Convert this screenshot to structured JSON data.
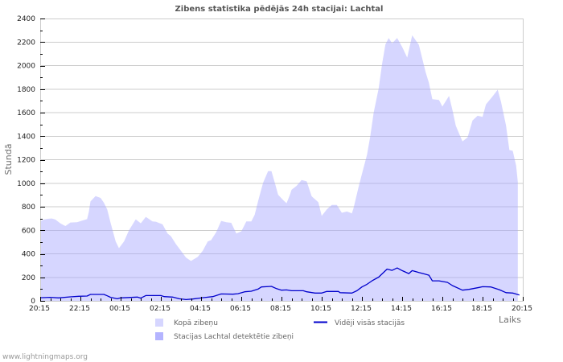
{
  "chart": {
    "watermark": "www.lightningmaps.org",
    "colors": {
      "grid": "#cccccc",
      "title": "#555555",
      "axis_label": "#707070",
      "total_fill": "#d6d6ff",
      "station_fill": "#b4b4ff",
      "average_line": "#0000cc"
    }
  },
  "chart_data": {
    "type": "area",
    "title": "Zibens statistika pēdējās 24h stacijai: Lachtal",
    "xlabel": "Laiks",
    "ylabel": "Stundā",
    "ylim": [
      0,
      2400
    ],
    "y_ticks": [
      0,
      200,
      400,
      600,
      800,
      1000,
      1200,
      1400,
      1600,
      1800,
      2000,
      2200,
      2400
    ],
    "x_ticks": [
      "20:15",
      "22:15",
      "00:15",
      "02:15",
      "04:15",
      "06:15",
      "08:15",
      "10:15",
      "12:15",
      "14:15",
      "16:15",
      "18:15",
      "20:15"
    ],
    "grid": true,
    "legend_position": "bottom",
    "series": [
      {
        "name": "Kopā zibeņu",
        "type": "area",
        "color": "#d6d6ff",
        "x": [
          "20:15",
          "20:25",
          "20:40",
          "20:50",
          "21:00",
          "21:15",
          "21:30",
          "21:45",
          "22:05",
          "22:20",
          "22:35",
          "22:40",
          "22:45",
          "23:00",
          "23:15",
          "23:25",
          "23:35",
          "23:45",
          "00:00",
          "00:10",
          "00:25",
          "00:40",
          "01:00",
          "01:15",
          "01:30",
          "01:50",
          "02:00",
          "02:20",
          "02:35",
          "02:45",
          "03:00",
          "03:15",
          "03:30",
          "03:45",
          "04:05",
          "04:20",
          "04:35",
          "04:45",
          "05:00",
          "05:15",
          "05:30",
          "05:45",
          "06:00",
          "06:15",
          "06:30",
          "06:45",
          "06:55",
          "07:05",
          "07:20",
          "07:35",
          "07:45",
          "07:55",
          "08:05",
          "08:20",
          "08:30",
          "08:40",
          "08:45",
          "09:00",
          "09:15",
          "09:30",
          "09:45",
          "10:05",
          "10:15",
          "10:30",
          "10:45",
          "11:00",
          "11:15",
          "11:30",
          "11:45",
          "11:50",
          "12:05",
          "12:15",
          "12:30",
          "12:40",
          "12:50",
          "13:05",
          "13:15",
          "13:25",
          "13:35",
          "13:45",
          "14:00",
          "14:15",
          "14:30",
          "14:45",
          "15:05",
          "15:15",
          "15:25",
          "15:35",
          "15:45",
          "16:05",
          "16:15",
          "16:35",
          "16:45",
          "16:55",
          "17:05",
          "17:15",
          "17:30",
          "17:45",
          "18:00",
          "18:15",
          "18:25",
          "18:45",
          "19:00",
          "19:10",
          "19:25",
          "19:35",
          "19:45",
          "19:55",
          "20:00"
        ],
        "values": [
          675,
          691,
          698,
          700,
          691,
          659,
          636,
          666,
          668,
          682,
          695,
          755,
          845,
          891,
          875,
          834,
          777,
          663,
          505,
          448,
          505,
          600,
          693,
          659,
          714,
          675,
          673,
          650,
          573,
          550,
          482,
          425,
          368,
          339,
          373,
          425,
          505,
          516,
          584,
          680,
          668,
          663,
          573,
          591,
          675,
          675,
          732,
          845,
          1004,
          1102,
          1102,
          1004,
          902,
          857,
          830,
          900,
          944,
          978,
          1027,
          1016,
          889,
          838,
          722,
          777,
          816,
          816,
          749,
          760,
          744,
          789,
          967,
          1078,
          1241,
          1400,
          1600,
          1805,
          2011,
          2180,
          2234,
          2189,
          2234,
          2159,
          2068,
          2257,
          2176,
          2060,
          1944,
          1853,
          1714,
          1708,
          1651,
          1742,
          1623,
          1489,
          1422,
          1355,
          1389,
          1533,
          1573,
          1564,
          1670,
          1738,
          1795,
          1693,
          1489,
          1282,
          1275,
          1150,
          1011
        ]
      },
      {
        "name": "Stacijas Lachtal detektētie zibeņi",
        "type": "area",
        "color": "#b4b4ff",
        "x": [],
        "values": []
      },
      {
        "name": "Vidēji visās stacijās",
        "type": "line",
        "color": "#0000cc",
        "x": [
          "20:15",
          "20:45",
          "21:10",
          "21:45",
          "22:10",
          "22:35",
          "22:45",
          "23:25",
          "23:35",
          "23:45",
          "00:05",
          "00:15",
          "01:05",
          "01:15",
          "01:30",
          "02:15",
          "02:25",
          "02:50",
          "03:10",
          "03:30",
          "03:50",
          "04:10",
          "04:30",
          "04:50",
          "05:15",
          "05:50",
          "06:05",
          "06:25",
          "06:45",
          "07:05",
          "07:15",
          "07:45",
          "08:00",
          "08:15",
          "08:30",
          "08:45",
          "09:20",
          "09:30",
          "09:55",
          "10:15",
          "10:30",
          "11:05",
          "11:10",
          "11:45",
          "12:00",
          "12:15",
          "12:30",
          "12:45",
          "13:05",
          "13:20",
          "13:30",
          "13:45",
          "14:00",
          "14:15",
          "14:35",
          "14:45",
          "15:05",
          "15:20",
          "15:35",
          "15:45",
          "16:05",
          "16:30",
          "16:45",
          "17:15",
          "17:35",
          "18:05",
          "18:15",
          "18:40",
          "19:05",
          "19:25",
          "19:45",
          "20:05"
        ],
        "values": [
          27,
          30,
          25,
          34,
          39,
          41,
          55,
          55,
          43,
          30,
          18,
          25,
          32,
          23,
          45,
          45,
          36,
          32,
          18,
          11,
          16,
          23,
          30,
          36,
          59,
          57,
          61,
          77,
          82,
          100,
          118,
          123,
          104,
          91,
          93,
          86,
          86,
          77,
          66,
          66,
          80,
          80,
          70,
          66,
          86,
          118,
          141,
          170,
          202,
          243,
          270,
          259,
          280,
          257,
          232,
          257,
          241,
          230,
          218,
          170,
          170,
          157,
          130,
          91,
          98,
          114,
          120,
          118,
          95,
          70,
          66,
          50
        ]
      }
    ]
  }
}
